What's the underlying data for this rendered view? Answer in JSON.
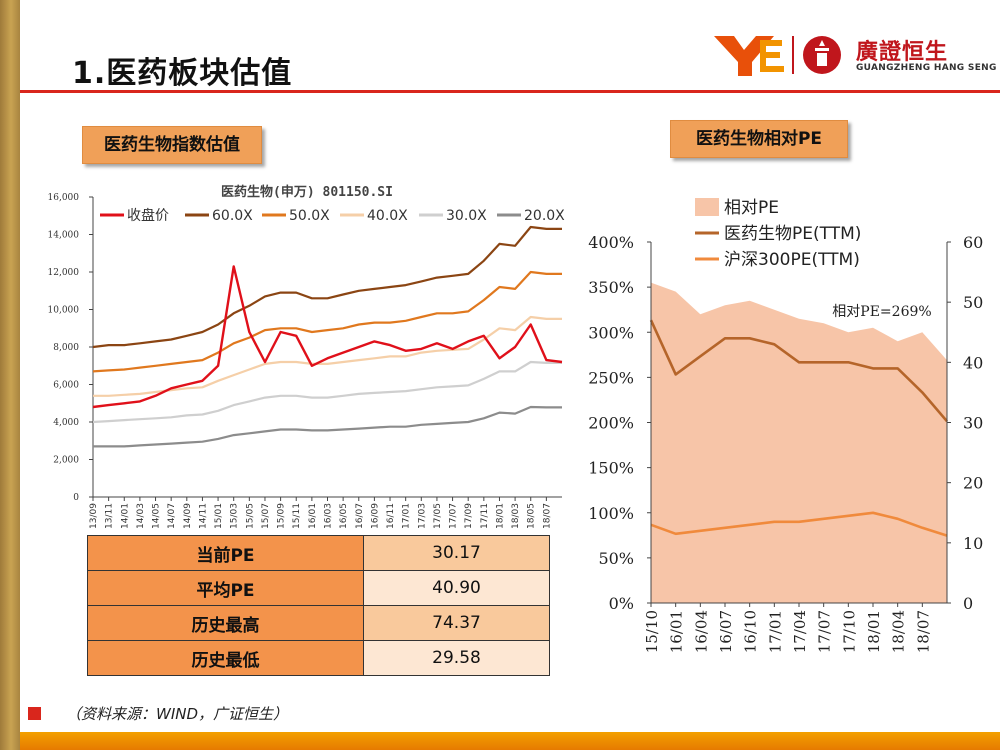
{
  "header": {
    "title": "1.医药板块估值",
    "brand_name": "廣證恒生",
    "brand_sub": "GUANGZHENG HANG SENG"
  },
  "colors": {
    "accent_red": "#d9261c",
    "tag_orange": "#f0a058",
    "gold_bar": "#c9a352"
  },
  "tags": {
    "left": "医药生物指数估值",
    "right": "医药生物相对PE"
  },
  "table": {
    "rows": [
      {
        "label": "当前PE",
        "value": "30.17"
      },
      {
        "label": "平均PE",
        "value": "40.90"
      },
      {
        "label": "历史最高",
        "value": "74.37"
      },
      {
        "label": "历史最低",
        "value": "29.58"
      }
    ]
  },
  "footer": {
    "source": "（资料来源：WIND，广证恒生）"
  },
  "chart_data": [
    {
      "type": "line",
      "title": "医药生物(申万) 801150.SI",
      "x": [
        "13/09",
        "13/11",
        "14/01",
        "14/03",
        "14/05",
        "14/07",
        "14/09",
        "14/11",
        "15/01",
        "15/03",
        "15/05",
        "15/07",
        "15/09",
        "15/11",
        "16/01",
        "16/03",
        "16/05",
        "16/07",
        "16/09",
        "16/11",
        "17/01",
        "17/03",
        "17/05",
        "17/07",
        "17/09",
        "17/11",
        "18/01",
        "18/03",
        "18/05",
        "18/07",
        "18/08"
      ],
      "ylim": [
        0,
        16000
      ],
      "yticks": [
        "0",
        "2,000",
        "4,000",
        "6,000",
        "8,000",
        "10,000",
        "12,000",
        "14,000",
        "16,000"
      ],
      "xticks": [
        "13/09",
        "13/11",
        "14/01",
        "14/03",
        "14/05",
        "14/07",
        "14/09",
        "14/11",
        "15/01",
        "15/03",
        "15/05",
        "15/07",
        "15/09",
        "15/11",
        "16/01",
        "16/03",
        "16/05",
        "16/07",
        "16/09",
        "16/11",
        "17/01",
        "17/03",
        "17/05",
        "17/07",
        "17/09",
        "17/11",
        "18/01",
        "18/03",
        "18/05",
        "18/07"
      ],
      "legend_position": "top",
      "grid": false,
      "series": [
        {
          "name": "收盘价",
          "color": "#e0101a",
          "values": [
            4800,
            4900,
            5000,
            5100,
            5400,
            5800,
            6000,
            6200,
            7000,
            12300,
            8800,
            7200,
            8800,
            8600,
            7000,
            7400,
            7700,
            8000,
            8300,
            8100,
            7800,
            7900,
            8200,
            7900,
            8300,
            8600,
            7400,
            8000,
            9200,
            7300,
            7200
          ]
        },
        {
          "name": "60.0X",
          "color": "#8b4513",
          "values": [
            8000,
            8100,
            8100,
            8200,
            8300,
            8400,
            8600,
            8800,
            9200,
            9800,
            10200,
            10700,
            10900,
            10900,
            10600,
            10600,
            10800,
            11000,
            11100,
            11200,
            11300,
            11500,
            11700,
            11800,
            11900,
            12600,
            13500,
            13400,
            14400,
            14300,
            14300
          ]
        },
        {
          "name": "50.0X",
          "color": "#e0781e",
          "values": [
            6700,
            6750,
            6800,
            6900,
            7000,
            7100,
            7200,
            7300,
            7700,
            8200,
            8500,
            8900,
            9000,
            9000,
            8800,
            8900,
            9000,
            9200,
            9300,
            9300,
            9400,
            9600,
            9800,
            9800,
            9900,
            10500,
            11200,
            11100,
            12000,
            11900,
            11900
          ]
        },
        {
          "name": "40.0X",
          "color": "#f5cfa8",
          "values": [
            5400,
            5400,
            5450,
            5500,
            5600,
            5700,
            5800,
            5850,
            6200,
            6500,
            6800,
            7100,
            7200,
            7200,
            7100,
            7100,
            7200,
            7300,
            7400,
            7500,
            7500,
            7700,
            7800,
            7850,
            7900,
            8400,
            9000,
            8900,
            9600,
            9500,
            9500
          ]
        },
        {
          "name": "30.0X",
          "color": "#cfcfcf",
          "values": [
            4000,
            4050,
            4100,
            4150,
            4200,
            4250,
            4350,
            4400,
            4600,
            4900,
            5100,
            5300,
            5400,
            5400,
            5300,
            5300,
            5400,
            5500,
            5550,
            5600,
            5650,
            5750,
            5850,
            5900,
            5950,
            6300,
            6700,
            6700,
            7200,
            7150,
            7150
          ]
        },
        {
          "name": "20.0X",
          "color": "#8c8c8c",
          "values": [
            2700,
            2700,
            2700,
            2750,
            2800,
            2850,
            2900,
            2950,
            3100,
            3300,
            3400,
            3500,
            3600,
            3600,
            3550,
            3550,
            3600,
            3650,
            3700,
            3750,
            3750,
            3850,
            3900,
            3950,
            4000,
            4200,
            4500,
            4450,
            4800,
            4780,
            4780
          ]
        }
      ]
    },
    {
      "type": "line",
      "x": [
        "15/10",
        "16/01",
        "16/04",
        "16/07",
        "16/10",
        "17/01",
        "17/04",
        "17/07",
        "17/10",
        "18/01",
        "18/04",
        "18/07",
        "18/08"
      ],
      "xticks": [
        "15/10",
        "16/01",
        "16/04",
        "16/07",
        "16/10",
        "17/01",
        "17/04",
        "17/07",
        "17/10",
        "18/01",
        "18/04",
        "18/07"
      ],
      "y_left_ticks": [
        "0%",
        "50%",
        "100%",
        "150%",
        "200%",
        "250%",
        "300%",
        "350%",
        "400%"
      ],
      "y_left_lim": [
        0,
        400
      ],
      "y_right_ticks": [
        "0",
        "10",
        "20",
        "30",
        "40",
        "50",
        "60"
      ],
      "y_right_lim": [
        0,
        60
      ],
      "legend_position": "top-left",
      "grid": false,
      "annotation": "相对PE=269%",
      "series": [
        {
          "name": "相对PE",
          "type": "area",
          "axis": "left",
          "color": "#f7c5a8",
          "values": [
            355,
            345,
            320,
            330,
            335,
            325,
            315,
            310,
            300,
            305,
            290,
            300,
            269
          ]
        },
        {
          "name": "医药生物PE(TTM)",
          "type": "line",
          "axis": "right",
          "color": "#b5652a",
          "values": [
            47,
            38,
            41,
            44,
            44,
            43,
            40,
            40,
            40,
            39,
            39,
            35,
            30.2
          ]
        },
        {
          "name": "沪深300PE(TTM)",
          "type": "line",
          "axis": "right",
          "color": "#f08a3c",
          "values": [
            13,
            11.5,
            12,
            12.5,
            13,
            13.5,
            13.5,
            14,
            14.5,
            15,
            14,
            12.5,
            11.2
          ]
        }
      ]
    }
  ]
}
